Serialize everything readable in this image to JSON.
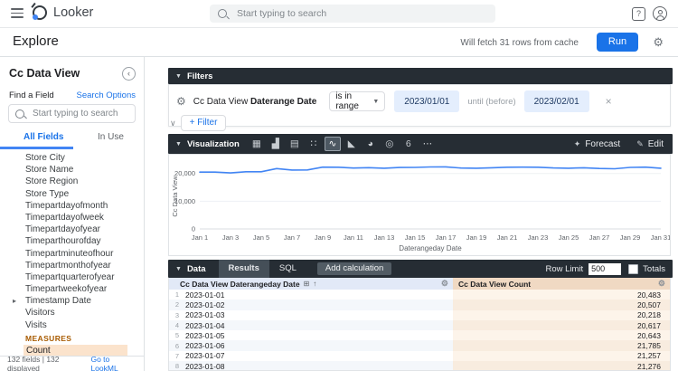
{
  "header": {
    "app_name": "Looker",
    "search_placeholder": "Start typing to search"
  },
  "explore_bar": {
    "title": "Explore",
    "cache_note": "Will fetch 31 rows from cache",
    "run_label": "Run"
  },
  "sidebar": {
    "title": "Cc Data View",
    "find_label": "Find a Field",
    "search_options_label": "Search Options",
    "search_placeholder": "Start typing to search",
    "tabs": [
      {
        "label": "All Fields",
        "active": true
      },
      {
        "label": "In Use",
        "active": false
      }
    ],
    "fields": [
      "Store City",
      "Store Name",
      "Store Region",
      "Store Type",
      "Timepartdayofmonth",
      "Timepartdayofweek",
      "Timepartdayofyear",
      "Timeparthourofday",
      "Timepartminuteofhour",
      "Timepartmonthofyear",
      "Timepartquarterofyear",
      "Timepartweekofyear",
      "Timestamp Date",
      "Visitors",
      "Visits"
    ],
    "expandable_field": "Timestamp Date",
    "measures_label": "MEASURES",
    "measures": [
      "Count"
    ],
    "footer": {
      "left": "132 fields | 132 displayed",
      "link": "Go to LookML"
    }
  },
  "filters": {
    "section_label": "Filters",
    "field_prefix": "Cc Data View ",
    "field_name": "Daterange Date",
    "operator": "is in range",
    "from_value": "2023/01/01",
    "until_label": "until (before)",
    "to_value": "2023/02/01",
    "add_filter_label": "+ Filter"
  },
  "visualization": {
    "section_label": "Visualization",
    "icons": [
      {
        "name": "table-chart-icon",
        "glyph": "▦",
        "selected": false
      },
      {
        "name": "column-chart-icon",
        "glyph": "▟",
        "selected": false
      },
      {
        "name": "bar-chart-icon",
        "glyph": "▤",
        "selected": false
      },
      {
        "name": "scatter-chart-icon",
        "glyph": "∷",
        "selected": false
      },
      {
        "name": "line-chart-icon",
        "glyph": "∿",
        "selected": true
      },
      {
        "name": "area-chart-icon",
        "glyph": "◣",
        "selected": false
      },
      {
        "name": "pie-chart-icon",
        "glyph": "◕",
        "selected": false
      },
      {
        "name": "map-chart-icon",
        "glyph": "◎",
        "selected": false
      },
      {
        "name": "single-value-icon",
        "glyph": "6",
        "selected": false
      },
      {
        "name": "more-viz-icon",
        "glyph": "⋯",
        "selected": false
      }
    ],
    "forecast_label": "Forecast",
    "edit_label": "Edit"
  },
  "chart_data": {
    "type": "line",
    "title": "",
    "xlabel": "Daterangeday Date",
    "ylabel": "Cc Data View",
    "x_ticks": [
      "Jan 1",
      "Jan 3",
      "Jan 5",
      "Jan 7",
      "Jan 9",
      "Jan 11",
      "Jan 13",
      "Jan 15",
      "Jan 17",
      "Jan 19",
      "Jan 21",
      "Jan 23",
      "Jan 25",
      "Jan 27",
      "Jan 29",
      "Jan 31"
    ],
    "y_ticks": [
      "0",
      "10,000",
      "20,000"
    ],
    "ylim": [
      0,
      23500
    ],
    "x": [
      1,
      2,
      3,
      4,
      5,
      6,
      7,
      8,
      9,
      10,
      11,
      12,
      13,
      14,
      15,
      16,
      17,
      18,
      19,
      20,
      21,
      22,
      23,
      24,
      25,
      26,
      27,
      28,
      29,
      30,
      31
    ],
    "values": [
      20483,
      20507,
      20218,
      20617,
      20643,
      21785,
      21257,
      21276,
      22300,
      22250,
      21950,
      22100,
      21900,
      22150,
      22200,
      22350,
      22400,
      21950,
      21900,
      22050,
      22250,
      22300,
      22250,
      22000,
      21900,
      22050,
      21800,
      21700,
      22200,
      22300,
      21900
    ],
    "line_color": "#4285f4",
    "legend": "none",
    "grid": true
  },
  "data_section": {
    "section_label": "Data",
    "tabs": [
      {
        "label": "Results",
        "active": true
      },
      {
        "label": "SQL",
        "active": false
      }
    ],
    "add_calculation_label": "Add calculation",
    "row_limit_label": "Row Limit",
    "row_limit_value": "500",
    "totals_label": "Totals"
  },
  "table": {
    "columns": [
      {
        "label": "Cc Data View Daterangeday Date",
        "sort": "asc"
      },
      {
        "label": "Cc Data View Count"
      }
    ],
    "rows": [
      {
        "n": "1",
        "date": "2023-01-01",
        "count": "20,483"
      },
      {
        "n": "2",
        "date": "2023-01-02",
        "count": "20,507"
      },
      {
        "n": "3",
        "date": "2023-01-03",
        "count": "20,218"
      },
      {
        "n": "4",
        "date": "2023-01-04",
        "count": "20,617"
      },
      {
        "n": "5",
        "date": "2023-01-05",
        "count": "20,643"
      },
      {
        "n": "6",
        "date": "2023-01-06",
        "count": "21,785"
      },
      {
        "n": "7",
        "date": "2023-01-07",
        "count": "21,257"
      },
      {
        "n": "8",
        "date": "2023-01-08",
        "count": "21,276"
      }
    ]
  },
  "colors": {
    "accent_blue": "#1a73e8",
    "dark_bar": "#262d34",
    "chart_line": "#4285f4",
    "measure_highlight": "#fbe3cc",
    "measures_label": "#a85b00",
    "date_header_bg": "#e2e9f7",
    "count_header_bg": "#f0d9c3",
    "filter_value_bg": "#e4eefd"
  }
}
